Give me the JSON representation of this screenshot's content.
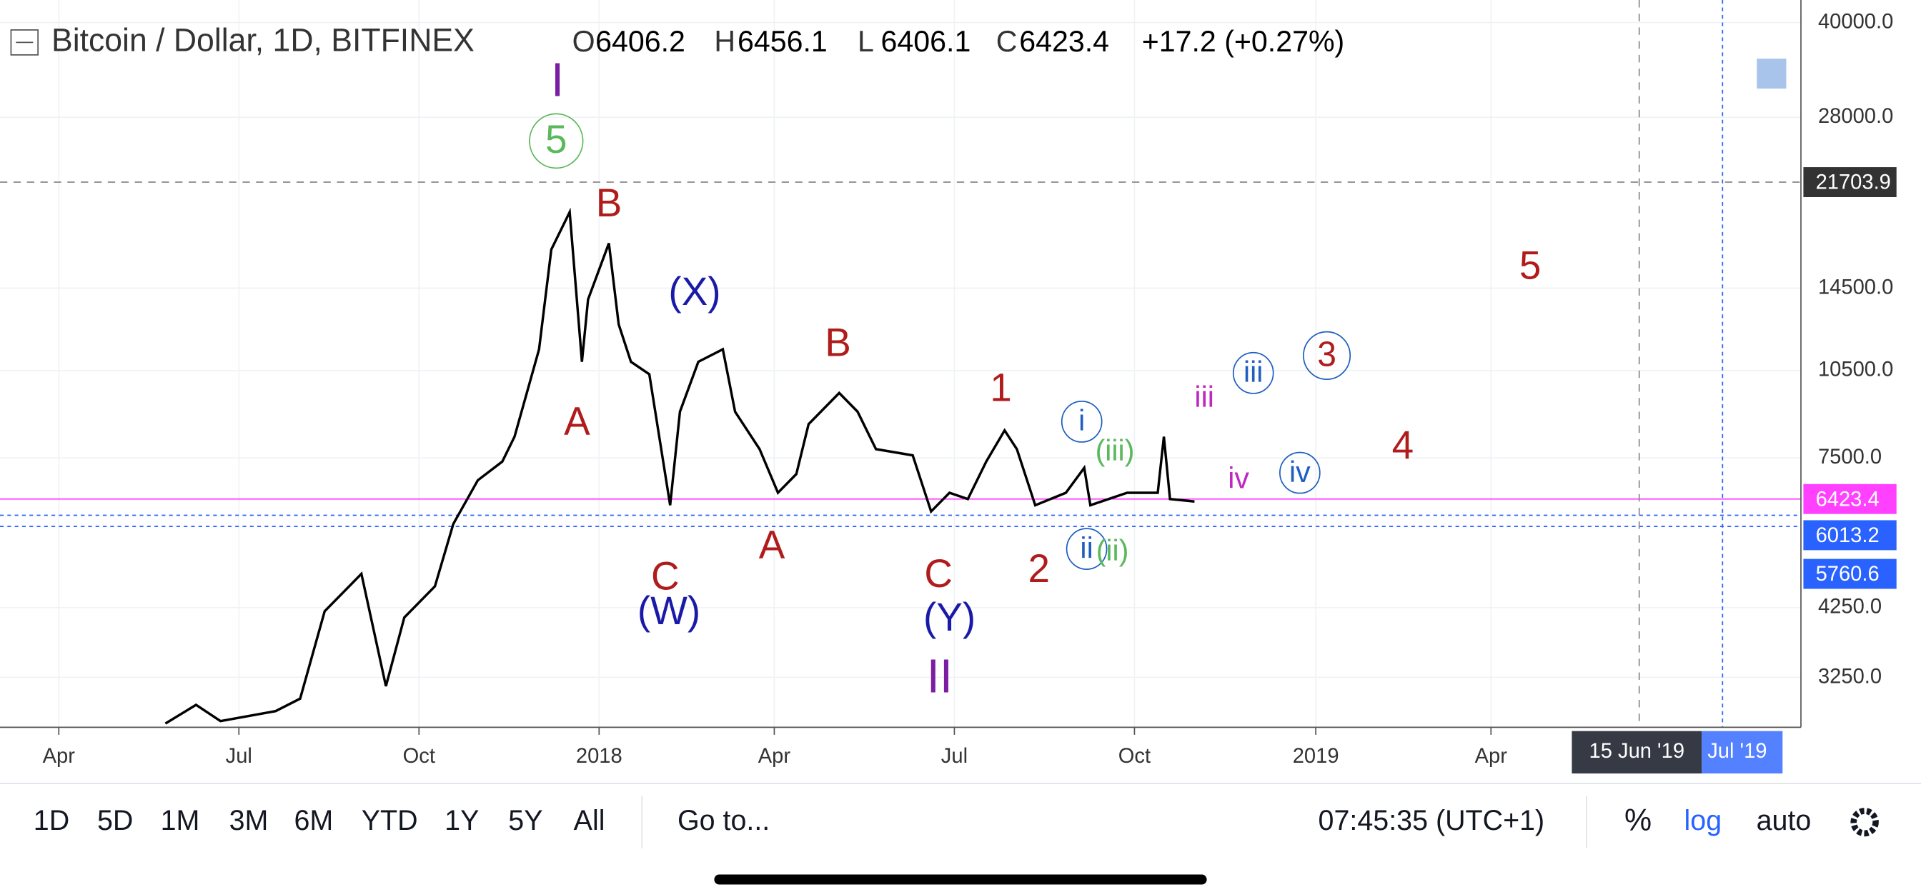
{
  "header": {
    "symbol": "Bitcoin / Dollar, 1D, BITFINEX",
    "ohlc": [
      {
        "key": "O",
        "value": "6406.2"
      },
      {
        "key": "H",
        "value": "6456.1"
      },
      {
        "key": "L",
        "value": "6406.1"
      },
      {
        "key": "C",
        "value": "6423.4"
      }
    ],
    "change": "+17.2 (+0.27%)"
  },
  "price_axis": {
    "labels": [
      "40000.0",
      "28000.0",
      "14500.0",
      "10500.0",
      "7500.0",
      "4250.0",
      "3250.0"
    ],
    "markers": [
      "21703.9",
      "6423.4",
      "6013.2",
      "5760.6"
    ]
  },
  "time_axis": {
    "labels": [
      "Apr",
      "Jul",
      "Oct",
      "2018",
      "Apr",
      "Jul",
      "Oct",
      "2019",
      "Apr"
    ],
    "crosshair": [
      "15 Jun '19",
      "Jul '19"
    ]
  },
  "waves": [
    "I",
    "5",
    "B",
    "A",
    "(X)",
    "C",
    "(W)",
    "A",
    "B",
    "C",
    "(Y)",
    "II",
    "1",
    "2",
    "i",
    "ii",
    "(iii)",
    "(ii)",
    "iii",
    "iv",
    "iv",
    "iii",
    "3",
    "4",
    "5"
  ],
  "toolbar": {
    "ranges": [
      "1D",
      "5D",
      "1M",
      "3M",
      "6M",
      "YTD",
      "1Y",
      "5Y",
      "All"
    ],
    "goto": "Go to...",
    "clock": "07:45:35 (UTC+1)",
    "percent": "%",
    "log": "log",
    "auto": "auto"
  }
}
